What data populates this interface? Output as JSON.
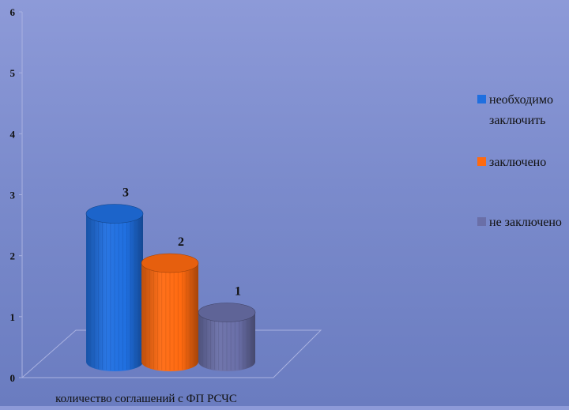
{
  "chart_data": {
    "type": "bar",
    "style": "3d-cylinder",
    "title": "",
    "xlabel": "количество соглашений с ФП РСЧС",
    "ylabel": "",
    "ylim": [
      0,
      6
    ],
    "yticks": [
      "0",
      "1",
      "2",
      "3",
      "4",
      "5",
      "6"
    ],
    "grid": false,
    "legend_position": "right",
    "series": [
      {
        "name": "необходимо заключить",
        "legend_lines": [
          "необходимо",
          "заключить"
        ],
        "value": 3,
        "label": "3",
        "color": "#1f6fe0"
      },
      {
        "name": "заключено",
        "legend_lines": [
          "заключено"
        ],
        "value": 2,
        "label": "2",
        "color": "#ff6a10"
      },
      {
        "name": "не заключено",
        "legend_lines": [
          "не заключено"
        ],
        "value": 1,
        "label": "1",
        "color": "#6a6fa8"
      }
    ]
  }
}
